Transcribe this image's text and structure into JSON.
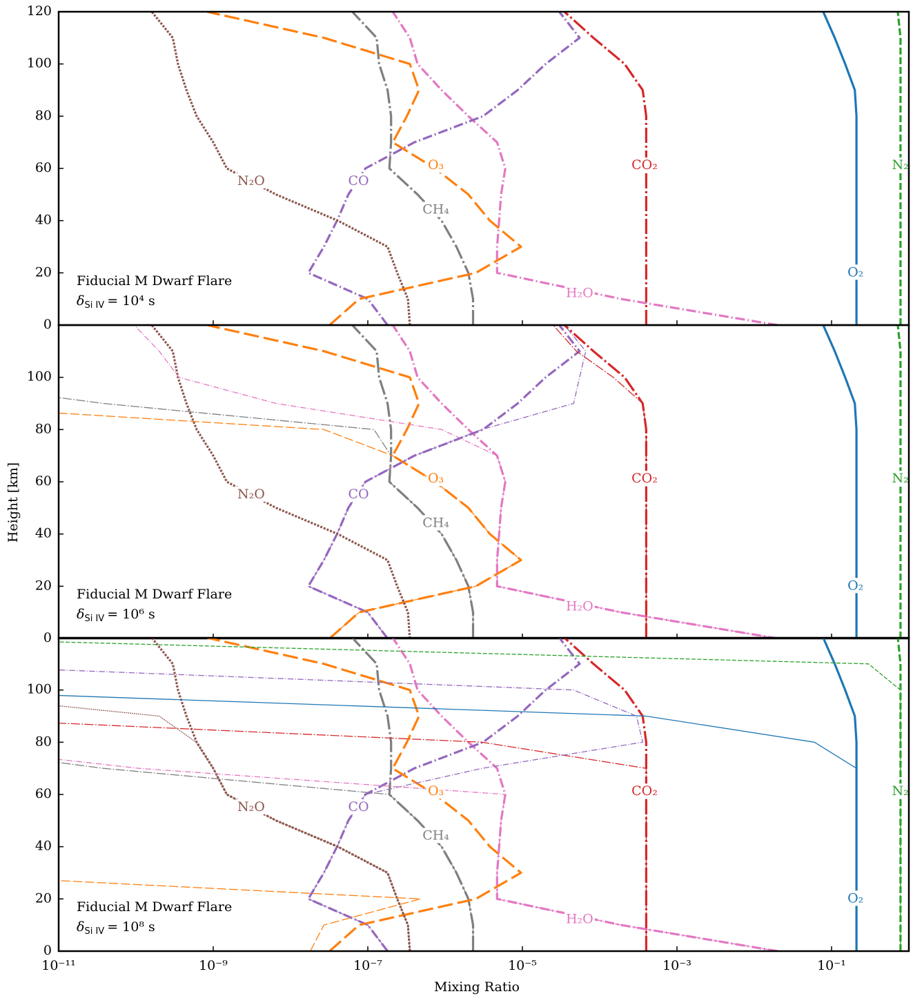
{
  "chart_data": [
    {
      "type": "line",
      "xscale": "log",
      "xlim": [
        1e-11,
        1
      ],
      "ylim": [
        0,
        120
      ],
      "xticks": [
        1e-11,
        1e-09,
        1e-07,
        1e-05,
        0.001,
        0.1
      ],
      "yticks": [
        0,
        20,
        40,
        60,
        80,
        100,
        120
      ],
      "annotation": {
        "line1": "Fiducial M Dwarf Flare",
        "symbol": "δ",
        "subscript": "Si IV",
        "value": "= 10⁴ s"
      },
      "heights": [
        0,
        10,
        20,
        30,
        40,
        50,
        60,
        70,
        80,
        90,
        100,
        110,
        120
      ],
      "series": [
        {
          "name": "O₂",
          "color": "#1f77b4",
          "style": "solid",
          "weight": "thick",
          "values": [
            0.21,
            0.21,
            0.21,
            0.21,
            0.21,
            0.21,
            0.21,
            0.21,
            0.21,
            0.2,
            0.15,
            0.11,
            0.078
          ]
        },
        {
          "name": "N₂",
          "color": "#2ca02c",
          "style": "dashed",
          "weight": "thick",
          "values": [
            0.78,
            0.78,
            0.78,
            0.78,
            0.78,
            0.78,
            0.78,
            0.78,
            0.78,
            0.78,
            0.78,
            0.78,
            0.72
          ]
        },
        {
          "name": "CO₂",
          "color": "#d62728",
          "style": "longdashdot",
          "weight": "thick",
          "values": [
            0.0004,
            0.0004,
            0.0004,
            0.0004,
            0.0004,
            0.0004,
            0.0004,
            0.0004,
            0.0004,
            0.00036,
            0.00021,
            8.3e-05,
            3.5e-05
          ]
        },
        {
          "name": "H₂O",
          "color": "#e377c2",
          "style": "dashdot",
          "weight": "thick",
          "values": [
            0.02,
            0.00019,
            4.7e-06,
            4.7e-06,
            5e-06,
            5.3e-06,
            6e-06,
            4.7e-06,
            2e-06,
            9e-07,
            4.4e-07,
            3.5e-07,
            2.1e-07
          ]
        },
        {
          "name": "CO",
          "color": "#9467bd",
          "style": "dashdot",
          "weight": "thick",
          "values": [
            1.8e-07,
            1e-07,
            1.7e-08,
            2.7e-08,
            4e-08,
            5.6e-08,
            9.3e-08,
            4e-07,
            3.1e-06,
            8.7e-06,
            2e-05,
            5.5e-05,
            3e-05
          ]
        },
        {
          "name": "CH₄",
          "color": "#7f7f7f",
          "style": "longdashdot",
          "weight": "thick",
          "values": [
            2.3e-06,
            2.3e-06,
            2e-06,
            1.4e-06,
            9e-07,
            4.4e-07,
            1.9e-07,
            2e-07,
            2e-07,
            1.8e-07,
            1.4e-07,
            1.3e-07,
            6.3e-08
          ]
        },
        {
          "name": "O₃",
          "color": "#ff7f0e",
          "style": "longdash",
          "weight": "thick",
          "values": [
            3.2e-08,
            7.7e-08,
            2.5e-06,
            9.6e-06,
            3.8e-06,
            2e-06,
            7.4e-07,
            2.1e-07,
            3.2e-07,
            4.6e-07,
            3.5e-07,
            2.7e-08,
            8.3e-10
          ]
        },
        {
          "name": "N₂O",
          "color": "#8c564b",
          "style": "dotted",
          "weight": "thick",
          "values": [
            3.5e-07,
            3.3e-07,
            2.4e-07,
            1.8e-07,
            4.1e-08,
            6.5e-09,
            1.5e-09,
            1e-09,
            6.1e-10,
            4.5e-10,
            3.5e-10,
            3e-10,
            1.6e-10
          ]
        }
      ]
    },
    {
      "type": "line",
      "xscale": "log",
      "xlim": [
        1e-11,
        1
      ],
      "ylim": [
        0,
        120
      ],
      "xticks": [
        1e-11,
        1e-09,
        1e-07,
        1e-05,
        0.001,
        0.1
      ],
      "yticks": [
        0,
        20,
        40,
        60,
        80,
        100
      ],
      "ylabel": "Height [km]",
      "annotation": {
        "line1": "Fiducial M Dwarf Flare",
        "symbol": "δ",
        "subscript": "Si IV",
        "value": "= 10⁶ s"
      },
      "heights": [
        0,
        10,
        20,
        30,
        40,
        50,
        60,
        70,
        80,
        90,
        100,
        110,
        120
      ],
      "series": [
        {
          "name": "O₂",
          "color": "#1f77b4",
          "style": "solid",
          "weight": "thick",
          "values": [
            0.21,
            0.21,
            0.21,
            0.21,
            0.21,
            0.21,
            0.21,
            0.21,
            0.21,
            0.2,
            0.15,
            0.11,
            0.078
          ]
        },
        {
          "name": "N₂",
          "color": "#2ca02c",
          "style": "dashed",
          "weight": "thick",
          "values": [
            0.78,
            0.78,
            0.78,
            0.78,
            0.78,
            0.78,
            0.78,
            0.78,
            0.78,
            0.78,
            0.78,
            0.78,
            0.72
          ]
        },
        {
          "name": "CO₂",
          "color": "#d62728",
          "style": "longdashdot",
          "weight": "thick",
          "values": [
            0.0004,
            0.0004,
            0.0004,
            0.0004,
            0.0004,
            0.0004,
            0.0004,
            0.0004,
            0.0004,
            0.00036,
            0.00021,
            8.3e-05,
            3.5e-05
          ]
        },
        {
          "name": "H₂O",
          "color": "#e377c2",
          "style": "dashdot",
          "weight": "thick",
          "values": [
            0.02,
            0.00019,
            4.7e-06,
            4.7e-06,
            5e-06,
            5.3e-06,
            6e-06,
            4.7e-06,
            2e-06,
            9e-07,
            4.4e-07,
            3.5e-07,
            2.1e-07
          ]
        },
        {
          "name": "CO",
          "color": "#9467bd",
          "style": "dashdot",
          "weight": "thick",
          "values": [
            1.8e-07,
            1e-07,
            1.7e-08,
            2.7e-08,
            4e-08,
            5.6e-08,
            9.3e-08,
            4e-07,
            3.1e-06,
            8.7e-06,
            2e-05,
            5.5e-05,
            3e-05
          ]
        },
        {
          "name": "CH₄",
          "color": "#7f7f7f",
          "style": "longdashdot",
          "weight": "thick",
          "values": [
            2.3e-06,
            2.3e-06,
            2e-06,
            1.4e-06,
            9e-07,
            4.4e-07,
            1.9e-07,
            2e-07,
            2e-07,
            1.8e-07,
            1.4e-07,
            1.3e-07,
            6.3e-08
          ]
        },
        {
          "name": "O₃",
          "color": "#ff7f0e",
          "style": "longdash",
          "weight": "thick",
          "values": [
            3.2e-08,
            7.7e-08,
            2.5e-06,
            9.6e-06,
            3.8e-06,
            2e-06,
            7.4e-07,
            2.1e-07,
            3.2e-07,
            4.6e-07,
            3.5e-07,
            2.7e-08,
            8.3e-10
          ]
        },
        {
          "name": "N₂O",
          "color": "#8c564b",
          "style": "dotted",
          "weight": "thick",
          "values": [
            3.5e-07,
            3.3e-07,
            2.4e-07,
            1.8e-07,
            4.1e-08,
            6.5e-09,
            1.5e-09,
            1e-09,
            6.1e-10,
            4.5e-10,
            3.5e-10,
            3e-10,
            1.6e-10
          ]
        },
        {
          "color": "#e377c2",
          "style": "dashdot",
          "weight": "thin",
          "values": [
            0.02,
            0.00019,
            4.7e-06,
            4.7e-06,
            5e-06,
            5.3e-06,
            6e-06,
            4.7e-06,
            9e-07,
            6.5e-09,
            3.6e-10,
            2e-10,
            9.5e-11
          ]
        },
        {
          "color": "#7f7f7f",
          "style": "longdashdot",
          "weight": "thin",
          "values": [
            2.3e-06,
            2.3e-06,
            2e-06,
            1.4e-06,
            9e-07,
            4.4e-07,
            1.9e-07,
            2e-07,
            1.2e-07,
            3.8e-11,
            1e-13,
            1e-13,
            1e-13
          ]
        },
        {
          "color": "#ff7f0e",
          "style": "longdash",
          "weight": "thin",
          "values": [
            3.2e-08,
            7.7e-08,
            2.5e-06,
            9.6e-06,
            3.8e-06,
            2e-06,
            7.4e-07,
            2.1e-07,
            2.7e-08,
            1e-13,
            1e-13,
            1e-13,
            1e-13
          ]
        },
        {
          "color": "#9467bd",
          "style": "dashdot",
          "weight": "thin",
          "values": [
            1.8e-07,
            1e-07,
            1.7e-08,
            2.7e-08,
            4e-08,
            5.6e-08,
            9.3e-08,
            4e-07,
            3e-06,
            4.6e-05,
            5.5e-05,
            6.6e-05,
            3.5e-05
          ]
        },
        {
          "color": "#d62728",
          "style": "longdashdot",
          "weight": "thin",
          "values": [
            0.0004,
            0.0004,
            0.0004,
            0.0004,
            0.0004,
            0.0004,
            0.0004,
            0.0004,
            0.0004,
            0.00036,
            0.00015,
            5e-05,
            2.5e-05
          ]
        }
      ]
    },
    {
      "type": "line",
      "xscale": "log",
      "xlim": [
        1e-11,
        1
      ],
      "ylim": [
        0,
        120
      ],
      "xticks": [
        {
          "value": 1e-11,
          "label": "10⁻¹¹"
        },
        {
          "value": 1e-09,
          "label": "10⁻⁹"
        },
        {
          "value": 1e-07,
          "label": "10⁻⁷"
        },
        {
          "value": 1e-05,
          "label": "10⁻⁵"
        },
        {
          "value": 0.001,
          "label": "10⁻³"
        },
        {
          "value": 0.1,
          "label": "10⁻¹"
        }
      ],
      "yticks": [
        0,
        20,
        40,
        60,
        80,
        100
      ],
      "xlabel": "Mixing Ratio",
      "annotation": {
        "line1": "Fiducial M Dwarf Flare",
        "symbol": "δ",
        "subscript": "Si IV",
        "value": "= 10⁸ s"
      },
      "heights": [
        0,
        10,
        20,
        30,
        40,
        50,
        60,
        70,
        80,
        90,
        100,
        110,
        120
      ],
      "series": [
        {
          "name": "O₂",
          "color": "#1f77b4",
          "style": "solid",
          "weight": "thick",
          "values": [
            0.21,
            0.21,
            0.21,
            0.21,
            0.21,
            0.21,
            0.21,
            0.21,
            0.21,
            0.2,
            0.15,
            0.11,
            0.078
          ]
        },
        {
          "name": "N₂",
          "color": "#2ca02c",
          "style": "dashed",
          "weight": "thick",
          "values": [
            0.78,
            0.78,
            0.78,
            0.78,
            0.78,
            0.78,
            0.78,
            0.78,
            0.78,
            0.78,
            0.78,
            0.78,
            0.72
          ]
        },
        {
          "name": "CO₂",
          "color": "#d62728",
          "style": "longdashdot",
          "weight": "thick",
          "values": [
            0.0004,
            0.0004,
            0.0004,
            0.0004,
            0.0004,
            0.0004,
            0.0004,
            0.0004,
            0.0004,
            0.00036,
            0.00021,
            8.3e-05,
            3.5e-05
          ]
        },
        {
          "name": "H₂O",
          "color": "#e377c2",
          "style": "dashdot",
          "weight": "thick",
          "values": [
            0.02,
            0.00019,
            4.7e-06,
            4.7e-06,
            5e-06,
            5.3e-06,
            6e-06,
            4.7e-06,
            2e-06,
            9e-07,
            4.4e-07,
            3.5e-07,
            2.1e-07
          ]
        },
        {
          "name": "CO",
          "color": "#9467bd",
          "style": "dashdot",
          "weight": "thick",
          "values": [
            1.8e-07,
            1e-07,
            1.7e-08,
            2.7e-08,
            4e-08,
            5.6e-08,
            9.3e-08,
            4e-07,
            3.1e-06,
            8.7e-06,
            2e-05,
            5.5e-05,
            3e-05
          ]
        },
        {
          "name": "CH₄",
          "color": "#7f7f7f",
          "style": "longdashdot",
          "weight": "thick",
          "values": [
            2.3e-06,
            2.3e-06,
            2e-06,
            1.4e-06,
            9e-07,
            4.4e-07,
            1.9e-07,
            2e-07,
            2e-07,
            1.8e-07,
            1.4e-07,
            1.3e-07,
            6.3e-08
          ]
        },
        {
          "name": "O₃",
          "color": "#ff7f0e",
          "style": "longdash",
          "weight": "thick",
          "values": [
            3.2e-08,
            7.7e-08,
            2.5e-06,
            9.6e-06,
            3.8e-06,
            2e-06,
            7.4e-07,
            2.1e-07,
            3.2e-07,
            4.6e-07,
            3.5e-07,
            2.7e-08,
            8.3e-10
          ]
        },
        {
          "name": "N₂O",
          "color": "#8c564b",
          "style": "dotted",
          "weight": "thick",
          "values": [
            3.5e-07,
            3.3e-07,
            2.4e-07,
            1.8e-07,
            4.1e-08,
            6.5e-09,
            1.5e-09,
            1e-09,
            6.1e-10,
            4.5e-10,
            3.5e-10,
            3e-10,
            1.6e-10
          ]
        },
        {
          "color": "#2ca02c",
          "style": "dashed",
          "weight": "thin",
          "values": [
            0.78,
            0.78,
            0.78,
            0.78,
            0.78,
            0.78,
            0.78,
            0.78,
            0.78,
            0.78,
            0.78,
            0.3,
            1e-13
          ]
        },
        {
          "color": "#1f77b4",
          "style": "solid",
          "weight": "thin",
          "values": [
            0.21,
            0.21,
            0.21,
            0.21,
            0.21,
            0.21,
            0.21,
            0.21,
            0.06,
            0.0004,
            1e-13,
            1e-13,
            1e-13
          ]
        },
        {
          "color": "#d62728",
          "style": "longdashdot",
          "weight": "thin",
          "values": [
            0.0004,
            0.0004,
            0.0004,
            0.0004,
            0.0004,
            0.0004,
            0.0004,
            0.0004,
            3e-06,
            1e-13,
            1e-13,
            1e-13,
            1e-13
          ]
        },
        {
          "color": "#9467bd",
          "style": "dashdot",
          "weight": "thin",
          "values": [
            1.8e-07,
            1e-07,
            1.7e-08,
            2.7e-08,
            4e-08,
            5.6e-08,
            9.3e-08,
            3e-06,
            0.00036,
            0.0003,
            4.6e-05,
            1e-13,
            1e-13
          ]
        },
        {
          "color": "#e377c2",
          "style": "dashdot",
          "weight": "thin",
          "values": [
            0.02,
            0.00019,
            4.7e-06,
            4.7e-06,
            5e-06,
            5.3e-06,
            6e-06,
            1.1e-10,
            1e-13,
            1e-13,
            1e-13,
            1e-13,
            1e-13
          ]
        },
        {
          "color": "#7f7f7f",
          "style": "longdashdot",
          "weight": "thin",
          "values": [
            2.3e-06,
            2.3e-06,
            2e-06,
            1.4e-06,
            9e-07,
            4.4e-07,
            1.9e-07,
            3.8e-11,
            1e-13,
            1e-13,
            1e-13,
            1e-13,
            1e-13
          ]
        },
        {
          "color": "#ff7f0e",
          "style": "longdash",
          "weight": "thin",
          "values": [
            1.8e-08,
            2.7e-08,
            4.8e-07,
            1e-13,
            1e-13,
            1e-13,
            1e-13,
            1e-13,
            1e-13,
            1e-13,
            1e-13,
            1e-13,
            1e-13
          ]
        },
        {
          "color": "#8c564b",
          "style": "dotted",
          "weight": "thin",
          "values": [
            3.5e-07,
            3.3e-07,
            2.4e-07,
            1.8e-07,
            4.1e-08,
            6.5e-09,
            1.5e-09,
            1e-09,
            6e-10,
            2e-10,
            1e-13,
            1e-13,
            1e-13
          ]
        }
      ]
    }
  ]
}
